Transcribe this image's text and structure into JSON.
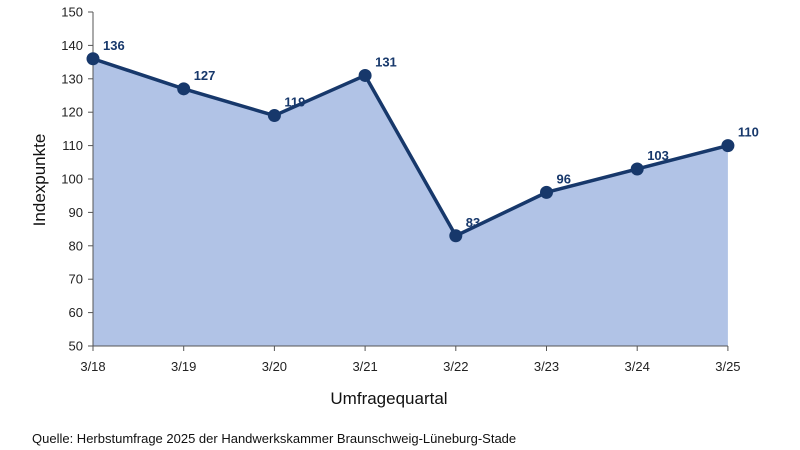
{
  "chart_data": {
    "type": "area",
    "categories": [
      "3/18",
      "3/19",
      "3/20",
      "3/21",
      "3/22",
      "3/23",
      "3/24",
      "3/25"
    ],
    "values": [
      136,
      127,
      119,
      131,
      83,
      96,
      103,
      110
    ],
    "data_labels": [
      "136",
      "127",
      "119",
      "131",
      "83",
      "96",
      "103",
      "110"
    ],
    "xlabel": "Umfragequartal",
    "ylabel": "Indexpunkte",
    "ylim": [
      50,
      150
    ],
    "yticks": [
      50,
      60,
      70,
      80,
      90,
      100,
      110,
      120,
      130,
      140,
      150
    ],
    "grid": false,
    "legend": "none",
    "colors": {
      "line": "#17386b",
      "fill": "#b1c3e6",
      "label": "#17386b",
      "axis": "#555555"
    }
  },
  "footer": {
    "source": "Quelle: Herbstumfrage 2025 der Handwerkskammer Braunschweig-Lüneburg-Stade"
  }
}
